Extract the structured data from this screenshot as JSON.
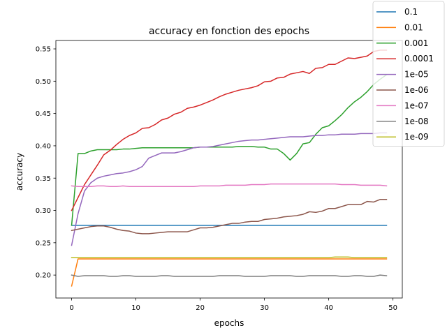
{
  "chart_data": {
    "type": "line",
    "title": "accuracy en fonction des epochs",
    "xlabel": "epochs",
    "ylabel": "accuracy",
    "xlim": [
      -2.45,
      51.45
    ],
    "ylim": [
      0.1645,
      0.563
    ],
    "xticks": [
      0,
      10,
      20,
      30,
      40,
      50
    ],
    "yticks": [
      0.2,
      0.25,
      0.3,
      0.35,
      0.4,
      0.45,
      0.5,
      0.55
    ],
    "ytick_labels": [
      "0.20",
      "0.25",
      "0.30",
      "0.35",
      "0.40",
      "0.45",
      "0.50",
      "0.55"
    ],
    "grid": false,
    "legend_position": "upper-right (outside axes)",
    "x": [
      0,
      1,
      2,
      3,
      4,
      5,
      6,
      7,
      8,
      9,
      10,
      11,
      12,
      13,
      14,
      15,
      16,
      17,
      18,
      19,
      20,
      21,
      22,
      23,
      24,
      25,
      26,
      27,
      28,
      29,
      30,
      31,
      32,
      33,
      34,
      35,
      36,
      37,
      38,
      39,
      40,
      41,
      42,
      43,
      44,
      45,
      46,
      47,
      48,
      49
    ],
    "series": [
      {
        "name": "0.1",
        "color": "#1f77b4",
        "values": [
          0.277,
          0.277,
          0.277,
          0.277,
          0.277,
          0.277,
          0.277,
          0.277,
          0.277,
          0.277,
          0.277,
          0.277,
          0.277,
          0.277,
          0.277,
          0.277,
          0.277,
          0.277,
          0.277,
          0.277,
          0.277,
          0.277,
          0.277,
          0.277,
          0.277,
          0.277,
          0.277,
          0.277,
          0.277,
          0.277,
          0.277,
          0.277,
          0.277,
          0.277,
          0.277,
          0.277,
          0.277,
          0.277,
          0.277,
          0.277,
          0.277,
          0.277,
          0.277,
          0.277,
          0.277,
          0.277,
          0.277,
          0.277,
          0.277,
          0.277
        ]
      },
      {
        "name": "0.01",
        "color": "#ff7f0e",
        "values": [
          0.183,
          0.225,
          0.225,
          0.225,
          0.225,
          0.225,
          0.225,
          0.225,
          0.225,
          0.225,
          0.225,
          0.225,
          0.225,
          0.225,
          0.225,
          0.225,
          0.225,
          0.225,
          0.225,
          0.225,
          0.225,
          0.225,
          0.225,
          0.225,
          0.225,
          0.225,
          0.225,
          0.225,
          0.225,
          0.225,
          0.225,
          0.225,
          0.225,
          0.225,
          0.225,
          0.225,
          0.225,
          0.225,
          0.225,
          0.225,
          0.225,
          0.225,
          0.225,
          0.225,
          0.225,
          0.225,
          0.225,
          0.225,
          0.225,
          0.225
        ]
      },
      {
        "name": "0.001",
        "color": "#2ca02c",
        "values": [
          0.277,
          0.388,
          0.388,
          0.392,
          0.394,
          0.394,
          0.394,
          0.394,
          0.395,
          0.395,
          0.396,
          0.397,
          0.397,
          0.397,
          0.397,
          0.397,
          0.397,
          0.397,
          0.397,
          0.397,
          0.398,
          0.398,
          0.398,
          0.398,
          0.398,
          0.398,
          0.399,
          0.399,
          0.399,
          0.398,
          0.398,
          0.395,
          0.395,
          0.388,
          0.378,
          0.388,
          0.403,
          0.405,
          0.418,
          0.428,
          0.431,
          0.439,
          0.448,
          0.459,
          0.468,
          0.475,
          0.484,
          0.495,
          0.503,
          0.51
        ]
      },
      {
        "name": "0.0001",
        "color": "#d62728",
        "values": [
          0.3,
          0.32,
          0.34,
          0.355,
          0.37,
          0.386,
          0.393,
          0.402,
          0.41,
          0.416,
          0.42,
          0.427,
          0.428,
          0.433,
          0.44,
          0.443,
          0.449,
          0.452,
          0.458,
          0.46,
          0.463,
          0.467,
          0.471,
          0.476,
          0.48,
          0.483,
          0.486,
          0.488,
          0.49,
          0.493,
          0.499,
          0.5,
          0.505,
          0.506,
          0.511,
          0.513,
          0.515,
          0.512,
          0.52,
          0.521,
          0.526,
          0.526,
          0.531,
          0.536,
          0.535,
          0.537,
          0.539,
          0.546,
          0.548,
          0.548
        ]
      },
      {
        "name": "1e-05",
        "color": "#9467bd",
        "values": [
          0.246,
          0.295,
          0.33,
          0.343,
          0.35,
          0.353,
          0.355,
          0.357,
          0.358,
          0.36,
          0.363,
          0.368,
          0.381,
          0.385,
          0.389,
          0.389,
          0.389,
          0.391,
          0.394,
          0.397,
          0.398,
          0.398,
          0.399,
          0.401,
          0.403,
          0.405,
          0.407,
          0.408,
          0.409,
          0.409,
          0.41,
          0.411,
          0.412,
          0.413,
          0.414,
          0.414,
          0.414,
          0.415,
          0.416,
          0.416,
          0.417,
          0.417,
          0.418,
          0.418,
          0.418,
          0.419,
          0.419,
          0.419,
          0.42,
          0.42
        ]
      },
      {
        "name": "1e-06",
        "color": "#8c564b",
        "values": [
          0.269,
          0.271,
          0.273,
          0.275,
          0.276,
          0.276,
          0.274,
          0.271,
          0.269,
          0.268,
          0.265,
          0.264,
          0.264,
          0.265,
          0.266,
          0.267,
          0.267,
          0.267,
          0.267,
          0.27,
          0.273,
          0.273,
          0.274,
          0.276,
          0.278,
          0.28,
          0.28,
          0.282,
          0.283,
          0.283,
          0.286,
          0.287,
          0.288,
          0.29,
          0.291,
          0.292,
          0.294,
          0.298,
          0.297,
          0.299,
          0.303,
          0.303,
          0.306,
          0.309,
          0.309,
          0.309,
          0.314,
          0.313,
          0.317,
          0.317
        ]
      },
      {
        "name": "1e-07",
        "color": "#e377c2",
        "values": [
          0.338,
          0.337,
          0.337,
          0.337,
          0.338,
          0.338,
          0.337,
          0.337,
          0.338,
          0.337,
          0.337,
          0.337,
          0.337,
          0.337,
          0.337,
          0.337,
          0.337,
          0.337,
          0.337,
          0.337,
          0.338,
          0.338,
          0.338,
          0.338,
          0.339,
          0.339,
          0.339,
          0.339,
          0.34,
          0.34,
          0.34,
          0.341,
          0.341,
          0.341,
          0.341,
          0.341,
          0.341,
          0.341,
          0.341,
          0.341,
          0.341,
          0.341,
          0.34,
          0.34,
          0.34,
          0.339,
          0.339,
          0.339,
          0.339,
          0.338
        ]
      },
      {
        "name": "1e-08",
        "color": "#7f7f7f",
        "values": [
          0.2,
          0.198,
          0.199,
          0.199,
          0.199,
          0.199,
          0.198,
          0.198,
          0.199,
          0.199,
          0.198,
          0.198,
          0.198,
          0.198,
          0.199,
          0.199,
          0.198,
          0.198,
          0.198,
          0.198,
          0.198,
          0.198,
          0.198,
          0.199,
          0.199,
          0.199,
          0.199,
          0.198,
          0.198,
          0.198,
          0.198,
          0.199,
          0.199,
          0.199,
          0.199,
          0.198,
          0.198,
          0.199,
          0.199,
          0.199,
          0.199,
          0.199,
          0.198,
          0.198,
          0.199,
          0.199,
          0.198,
          0.198,
          0.2,
          0.199
        ]
      },
      {
        "name": "1e-09",
        "color": "#bcbd22",
        "values": [
          0.227,
          0.227,
          0.227,
          0.227,
          0.227,
          0.227,
          0.227,
          0.227,
          0.227,
          0.227,
          0.227,
          0.227,
          0.227,
          0.227,
          0.227,
          0.227,
          0.227,
          0.227,
          0.227,
          0.227,
          0.227,
          0.227,
          0.227,
          0.227,
          0.227,
          0.227,
          0.227,
          0.227,
          0.227,
          0.227,
          0.227,
          0.227,
          0.227,
          0.227,
          0.227,
          0.227,
          0.227,
          0.227,
          0.227,
          0.227,
          0.227,
          0.228,
          0.228,
          0.228,
          0.227,
          0.227,
          0.227,
          0.227,
          0.227,
          0.227
        ]
      }
    ]
  }
}
